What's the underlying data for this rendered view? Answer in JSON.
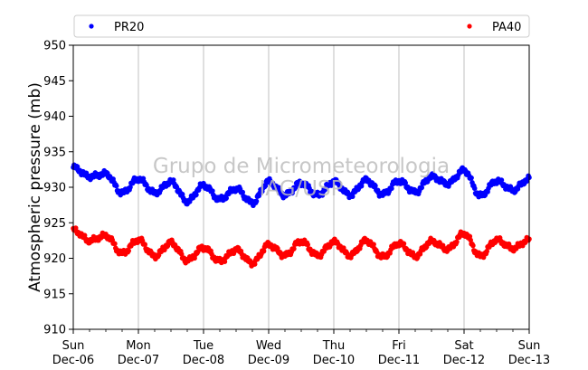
{
  "chart_data": {
    "type": "scatter",
    "title": "",
    "watermark": [
      "Grupo de Micrometeorologia",
      "IAG/USP"
    ],
    "xlabel": "",
    "ylabel": "Atmospheric pressure (mb)",
    "ylim": [
      910,
      950
    ],
    "yticks": [
      910,
      915,
      920,
      925,
      930,
      935,
      940,
      945,
      950
    ],
    "xlim": [
      "Dec-06",
      "Dec-13"
    ],
    "xticks": [
      {
        "day": "Sun",
        "date": "Dec-06"
      },
      {
        "day": "Mon",
        "date": "Dec-07"
      },
      {
        "day": "Tue",
        "date": "Dec-08"
      },
      {
        "day": "Wed",
        "date": "Dec-09"
      },
      {
        "day": "Thu",
        "date": "Dec-10"
      },
      {
        "day": "Fri",
        "date": "Dec-11"
      },
      {
        "day": "Sat",
        "date": "Dec-12"
      },
      {
        "day": "Sun",
        "date": "Dec-13"
      }
    ],
    "grid": "vertical",
    "legend_position": "top-outside",
    "series": [
      {
        "name": "PR20",
        "color": "#0000ff",
        "x_days": [
          0,
          0.25,
          0.5,
          0.75,
          1,
          1.25,
          1.5,
          1.75,
          2,
          2.25,
          2.5,
          2.75,
          3,
          3.25,
          3.5,
          3.75,
          4,
          4.25,
          4.5,
          4.75,
          5,
          5.25,
          5.5,
          5.75,
          6,
          6.25,
          6.5,
          6.75,
          7
        ],
        "values": [
          932.8,
          931.5,
          931.9,
          929.2,
          931.2,
          929.2,
          930.8,
          928.0,
          930.3,
          928.3,
          929.8,
          927.8,
          930.8,
          928.9,
          930.6,
          928.9,
          930.8,
          928.9,
          931.0,
          929.0,
          930.9,
          929.3,
          931.5,
          930.5,
          932.4,
          928.8,
          930.9,
          929.6,
          931.2
        ]
      },
      {
        "name": "PA40",
        "color": "#ff0000",
        "x_days": [
          0,
          0.25,
          0.5,
          0.75,
          1,
          1.25,
          1.5,
          1.75,
          2,
          2.25,
          2.5,
          2.75,
          3,
          3.25,
          3.5,
          3.75,
          4,
          4.25,
          4.5,
          4.75,
          5,
          5.25,
          5.5,
          5.75,
          6,
          6.25,
          6.5,
          6.75,
          7
        ],
        "values": [
          924.0,
          922.5,
          923.2,
          920.7,
          922.6,
          920.3,
          922.2,
          919.7,
          921.5,
          919.6,
          921.2,
          919.3,
          921.9,
          920.4,
          922.4,
          920.4,
          922.3,
          920.4,
          922.5,
          920.2,
          922.1,
          920.3,
          922.4,
          921.3,
          923.5,
          920.3,
          922.6,
          921.4,
          922.6
        ]
      }
    ]
  }
}
